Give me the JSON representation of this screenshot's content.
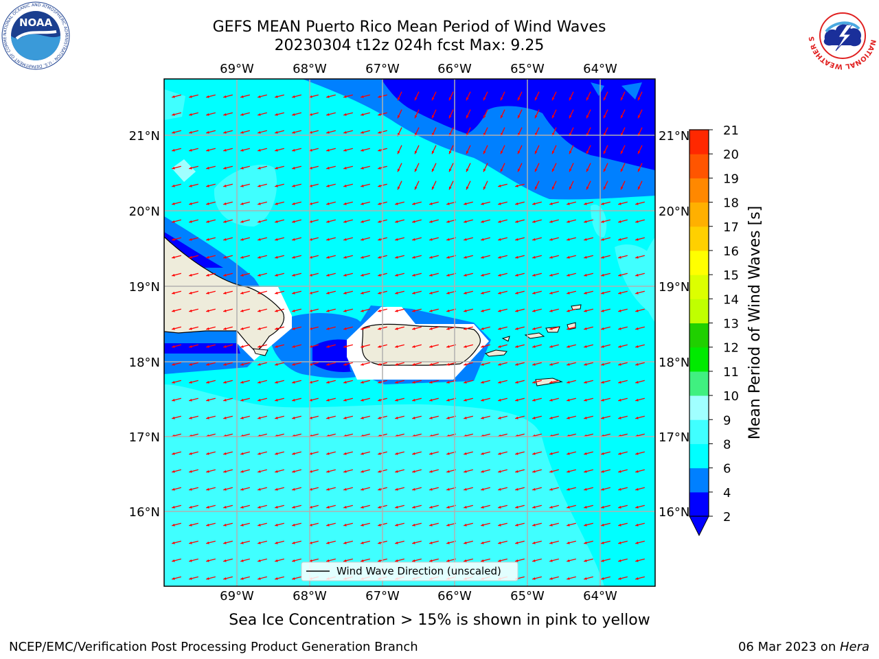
{
  "title": {
    "line1": "GEFS MEAN Puerto Rico Mean Period of Wind Waves",
    "line2": "20230304 t12z 024h fcst   Max: 9.25"
  },
  "map": {
    "lon_labels": [
      "69°W",
      "68°W",
      "67°W",
      "66°W",
      "65°W",
      "64°W"
    ],
    "lat_labels": [
      "21°N",
      "20°N",
      "19°N",
      "18°N",
      "17°N",
      "16°N"
    ],
    "land_color": "#eeecdb",
    "arrow_color": "#ff0000",
    "legend_label": "Wind Wave Direction (unscaled)"
  },
  "colorbar": {
    "label": "Mean Period of Wind Waves [s]",
    "ticks": [
      "2",
      "4",
      "6",
      "8",
      "9",
      "10",
      "11",
      "12",
      "13",
      "14",
      "15",
      "16",
      "17",
      "18",
      "19",
      "20",
      "21"
    ],
    "colors": [
      "#0000ff",
      "#0080ff",
      "#00ffff",
      "#40ffff",
      "#a0ffff",
      "#40f080",
      "#00ea00",
      "#20d000",
      "#c0ff00",
      "#dcff00",
      "#ffff00",
      "#ffd000",
      "#ffb000",
      "#ff8800",
      "#ff5500",
      "#ff2800",
      "#ff0000"
    ],
    "underflow_color": "#0000ff"
  },
  "caption": "Sea Ice Concentration > 15% is shown in pink to yellow",
  "footer": {
    "left": "NCEP/EMC/Verification Post Processing Product Generation Branch",
    "date": "06 Mar 2023 on ",
    "machine": "Hera"
  },
  "logos": {
    "noaa": "NOAA",
    "noaa_ring": "NATIONAL OCEANIC AND ATMOSPHERIC ADMINISTRATION · U.S. DEPARTMENT OF COMMERCE",
    "nws_ring": "NATIONAL WEATHER SERVICE"
  }
}
